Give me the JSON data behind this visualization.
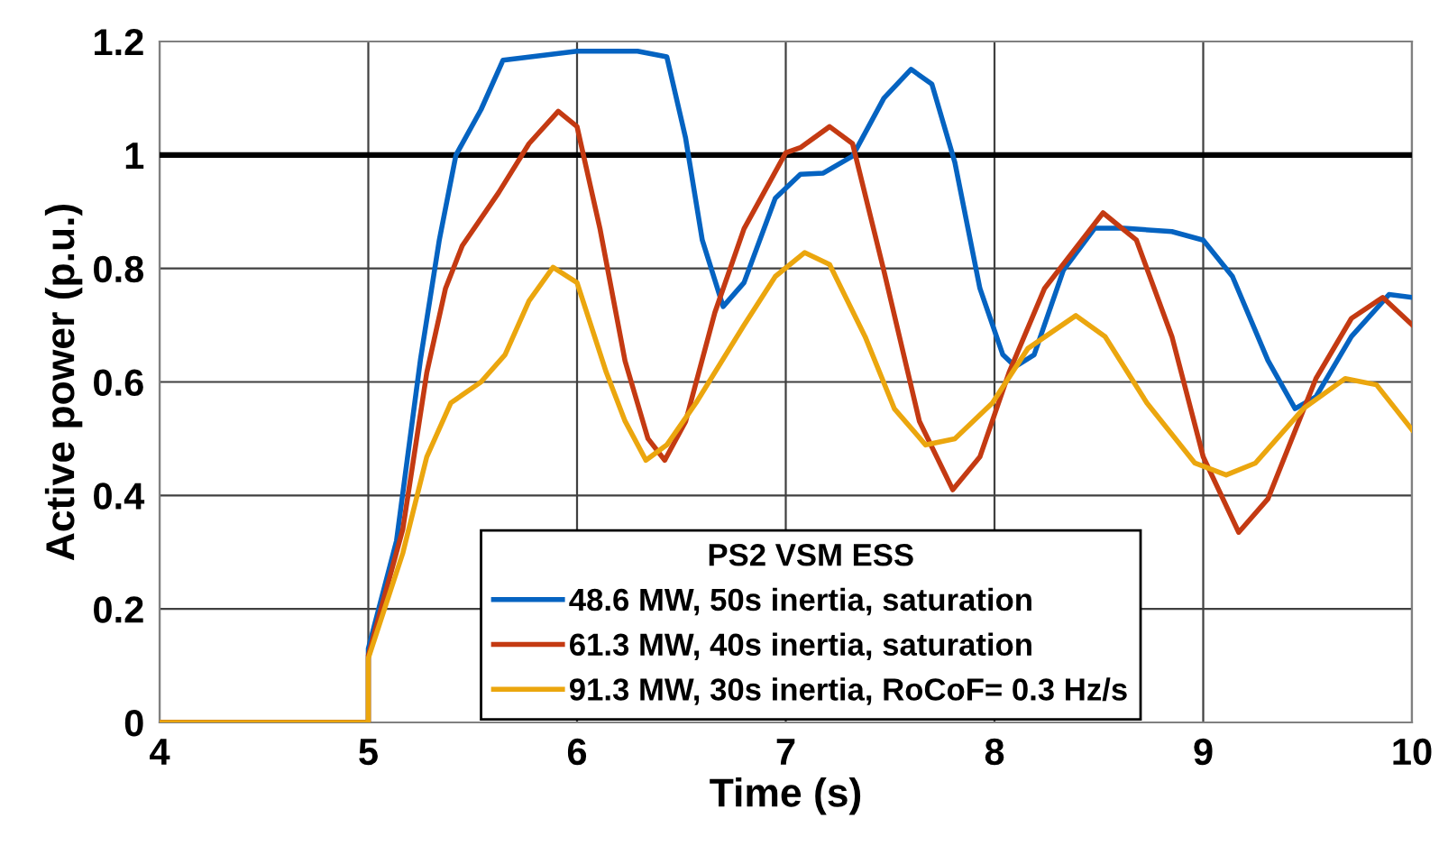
{
  "chart_data": {
    "type": "line",
    "xlabel": "Time (s)",
    "ylabel": "Active power (p.u.)",
    "xlim": [
      4,
      10
    ],
    "xticks": [
      4,
      5,
      6,
      7,
      8,
      9,
      10
    ],
    "ylim": [
      0,
      1.2
    ],
    "yticks": [
      0,
      0.2,
      0.4,
      0.6,
      0.8,
      1,
      1.2
    ],
    "grid": true,
    "legend": "bottom",
    "legend_title": "PS2 VSM ESS",
    "line_style": "solid",
    "marker": "none",
    "ref_lines": [
      {
        "axis": "y",
        "value": 1,
        "color": "#000000"
      }
    ],
    "series": [
      {
        "name": "48.6 MW, 50s inertia, saturation",
        "color": "#0563c1",
        "x": [
          4,
          5,
          5,
          5.135,
          5.25,
          5.34,
          5.42,
          5.54,
          5.645,
          6.0,
          6.29,
          6.43,
          6.52,
          6.6,
          6.7,
          6.8,
          6.95,
          7.07,
          7.18,
          7.32,
          7.47,
          7.6,
          7.7,
          7.81,
          7.93,
          8.04,
          8.1,
          8.19,
          8.33,
          8.48,
          8.62,
          8.85,
          9.0,
          9.14,
          9.31,
          9.44,
          9.54,
          9.71,
          9.89,
          10.0
        ],
        "values": [
          0,
          0,
          0.13,
          0.32,
          0.64,
          0.85,
          1.0,
          1.08,
          1.167,
          1.183,
          1.183,
          1.173,
          1.03,
          0.85,
          0.733,
          0.775,
          0.924,
          0.966,
          0.968,
          0.998,
          1.1,
          1.151,
          1.125,
          0.987,
          0.765,
          0.648,
          0.627,
          0.648,
          0.797,
          0.871,
          0.871,
          0.865,
          0.85,
          0.786,
          0.638,
          0.553,
          0.574,
          0.68,
          0.754,
          0.749
        ]
      },
      {
        "name": "61.3 MW, 40s inertia, saturation",
        "color": "#c43a12",
        "x": [
          4,
          5,
          5,
          5.165,
          5.28,
          5.37,
          5.45,
          5.625,
          5.77,
          5.91,
          6.0,
          6.11,
          6.23,
          6.34,
          6.42,
          6.52,
          6.66,
          6.8,
          7.0,
          7.07,
          7.21,
          7.32,
          7.47,
          7.64,
          7.8,
          7.93,
          8.07,
          8.24,
          8.52,
          8.68,
          8.85,
          9.0,
          9.17,
          9.31,
          9.54,
          9.71,
          9.86,
          10.0
        ],
        "values": [
          0,
          0,
          0.118,
          0.34,
          0.616,
          0.765,
          0.84,
          0.934,
          1.02,
          1.077,
          1.05,
          0.87,
          0.637,
          0.5,
          0.462,
          0.53,
          0.722,
          0.87,
          1.004,
          1.013,
          1.05,
          1.02,
          0.796,
          0.531,
          0.41,
          0.468,
          0.617,
          0.765,
          0.898,
          0.85,
          0.68,
          0.468,
          0.335,
          0.394,
          0.606,
          0.712,
          0.749,
          0.701
        ]
      },
      {
        "name": "91.3 MW, 30s inertia, RoCoF= 0.3 Hz/s",
        "color": "#eba60e",
        "x": [
          4,
          5,
          5,
          5.165,
          5.28,
          5.395,
          5.54,
          5.655,
          5.77,
          5.885,
          6.0,
          6.14,
          6.23,
          6.33,
          6.43,
          6.57,
          6.8,
          6.95,
          7.09,
          7.21,
          7.38,
          7.52,
          7.67,
          7.81,
          7.99,
          8.16,
          8.39,
          8.53,
          8.73,
          8.96,
          9.11,
          9.25,
          9.48,
          9.68,
          9.83,
          10.0
        ],
        "values": [
          0,
          0,
          0.113,
          0.298,
          0.468,
          0.563,
          0.6,
          0.648,
          0.743,
          0.802,
          0.775,
          0.617,
          0.531,
          0.462,
          0.489,
          0.563,
          0.7,
          0.786,
          0.828,
          0.807,
          0.68,
          0.553,
          0.489,
          0.5,
          0.563,
          0.659,
          0.717,
          0.68,
          0.563,
          0.457,
          0.436,
          0.457,
          0.553,
          0.606,
          0.595,
          0.516
        ]
      }
    ]
  }
}
